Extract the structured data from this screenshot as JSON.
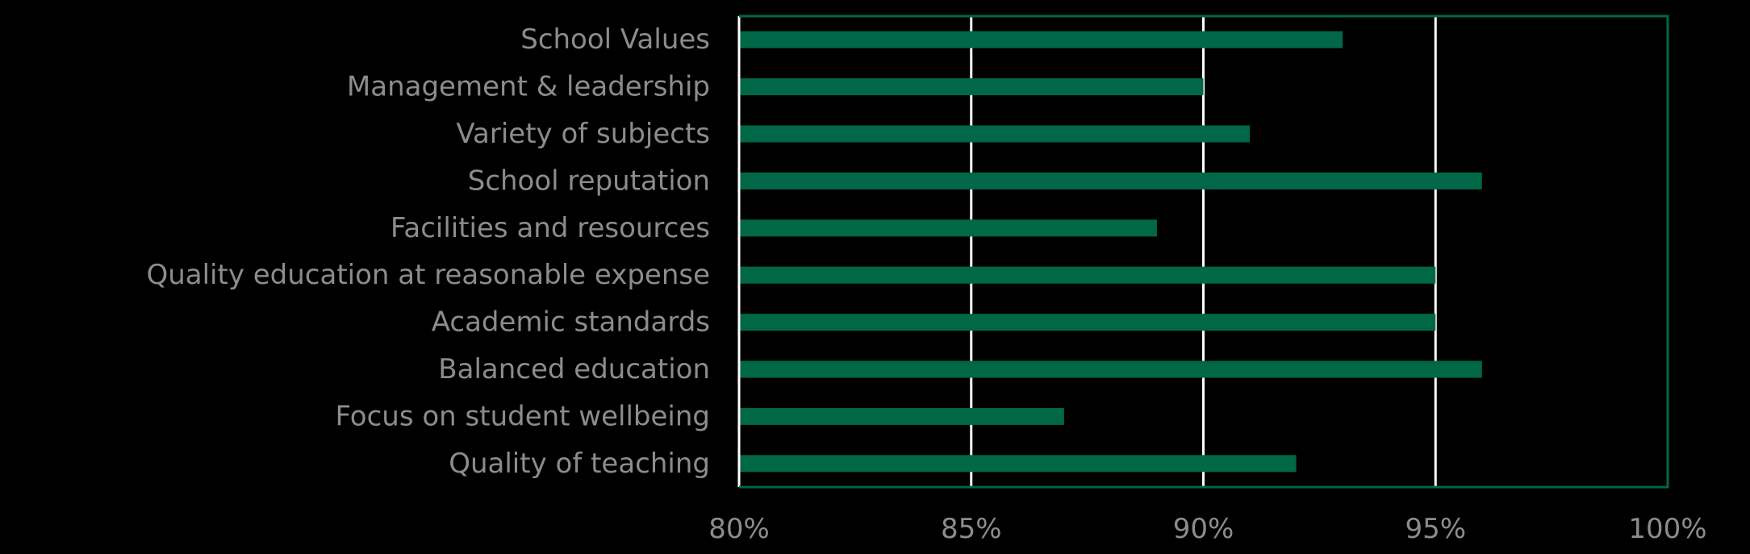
{
  "chart_data": {
    "type": "bar",
    "orientation": "horizontal",
    "categories": [
      "School Values",
      "Management & leadership",
      "Variety of subjects",
      "School reputation",
      "Facilities and resources",
      "Quality education at reasonable expense",
      "Academic standards",
      "Balanced education",
      "Focus on student wellbeing",
      "Quality of teaching"
    ],
    "values": [
      93,
      90,
      91,
      96,
      89,
      95,
      95,
      96,
      87,
      92
    ],
    "value_unit": "%",
    "xlim": [
      80,
      100
    ],
    "xticks": [
      80,
      85,
      90,
      95,
      100
    ],
    "xtick_labels": [
      "80%",
      "85%",
      "90%",
      "95%",
      "100%"
    ],
    "title": "",
    "xlabel": "",
    "ylabel": "",
    "grid": "vertical",
    "legend": "none",
    "colors": {
      "background": "#000000",
      "bar": "#006747",
      "frame": "#006747",
      "gridline": "#ffffff",
      "label_text": "#8c8c8c"
    }
  }
}
